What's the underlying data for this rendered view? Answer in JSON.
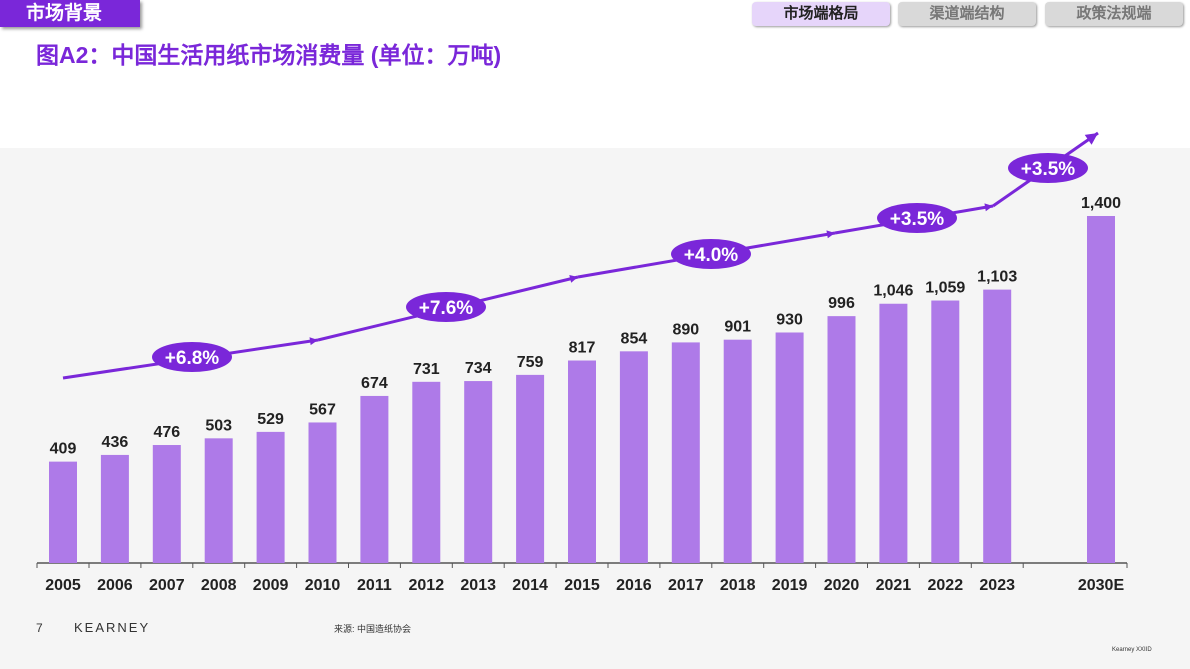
{
  "header": {
    "section_tag": "市场背景",
    "title": "图A2：中国生活用纸市场消费量 (单位：万吨)",
    "tabs": [
      {
        "label": "市场端格局",
        "active": true
      },
      {
        "label": "渠道端结构",
        "active": false
      },
      {
        "label": "政策法规端",
        "active": false
      }
    ]
  },
  "chart_data": {
    "type": "bar",
    "title": "图A2：中国生活用纸市场消费量 (单位：万吨)",
    "categories": [
      "2005",
      "2006",
      "2007",
      "2008",
      "2009",
      "2010",
      "2011",
      "2012",
      "2013",
      "2014",
      "2015",
      "2016",
      "2017",
      "2018",
      "2019",
      "2020",
      "2021",
      "2022",
      "2023",
      "2030E"
    ],
    "values": [
      409,
      436,
      476,
      503,
      529,
      567,
      674,
      731,
      734,
      759,
      817,
      854,
      890,
      901,
      930,
      996,
      1046,
      1059,
      1103,
      1400
    ],
    "value_labels": [
      "409",
      "436",
      "476",
      "503",
      "529",
      "567",
      "674",
      "731",
      "734",
      "759",
      "817",
      "854",
      "890",
      "901",
      "930",
      "996",
      "1,046",
      "1,059",
      "1,103",
      "1,400"
    ],
    "ylim": [
      0,
      1400
    ],
    "grid": false,
    "growth_annotations": [
      {
        "label": "+6.8%",
        "period": "2005-2010"
      },
      {
        "label": "+7.6%",
        "period": "2010-2015"
      },
      {
        "label": "+4.0%",
        "period": "2015-2020"
      },
      {
        "label": "+3.5%",
        "period": "2020-2023"
      },
      {
        "label": "+3.5%",
        "period": "2023-2030E"
      }
    ],
    "colors": {
      "bar": "#ae7ae8",
      "accent": "#7a27d9"
    }
  },
  "footer": {
    "page_number": "7",
    "brand": "KEARNEY",
    "source": "来源: 中国造纸协会",
    "code": "Kearney XXIID"
  }
}
